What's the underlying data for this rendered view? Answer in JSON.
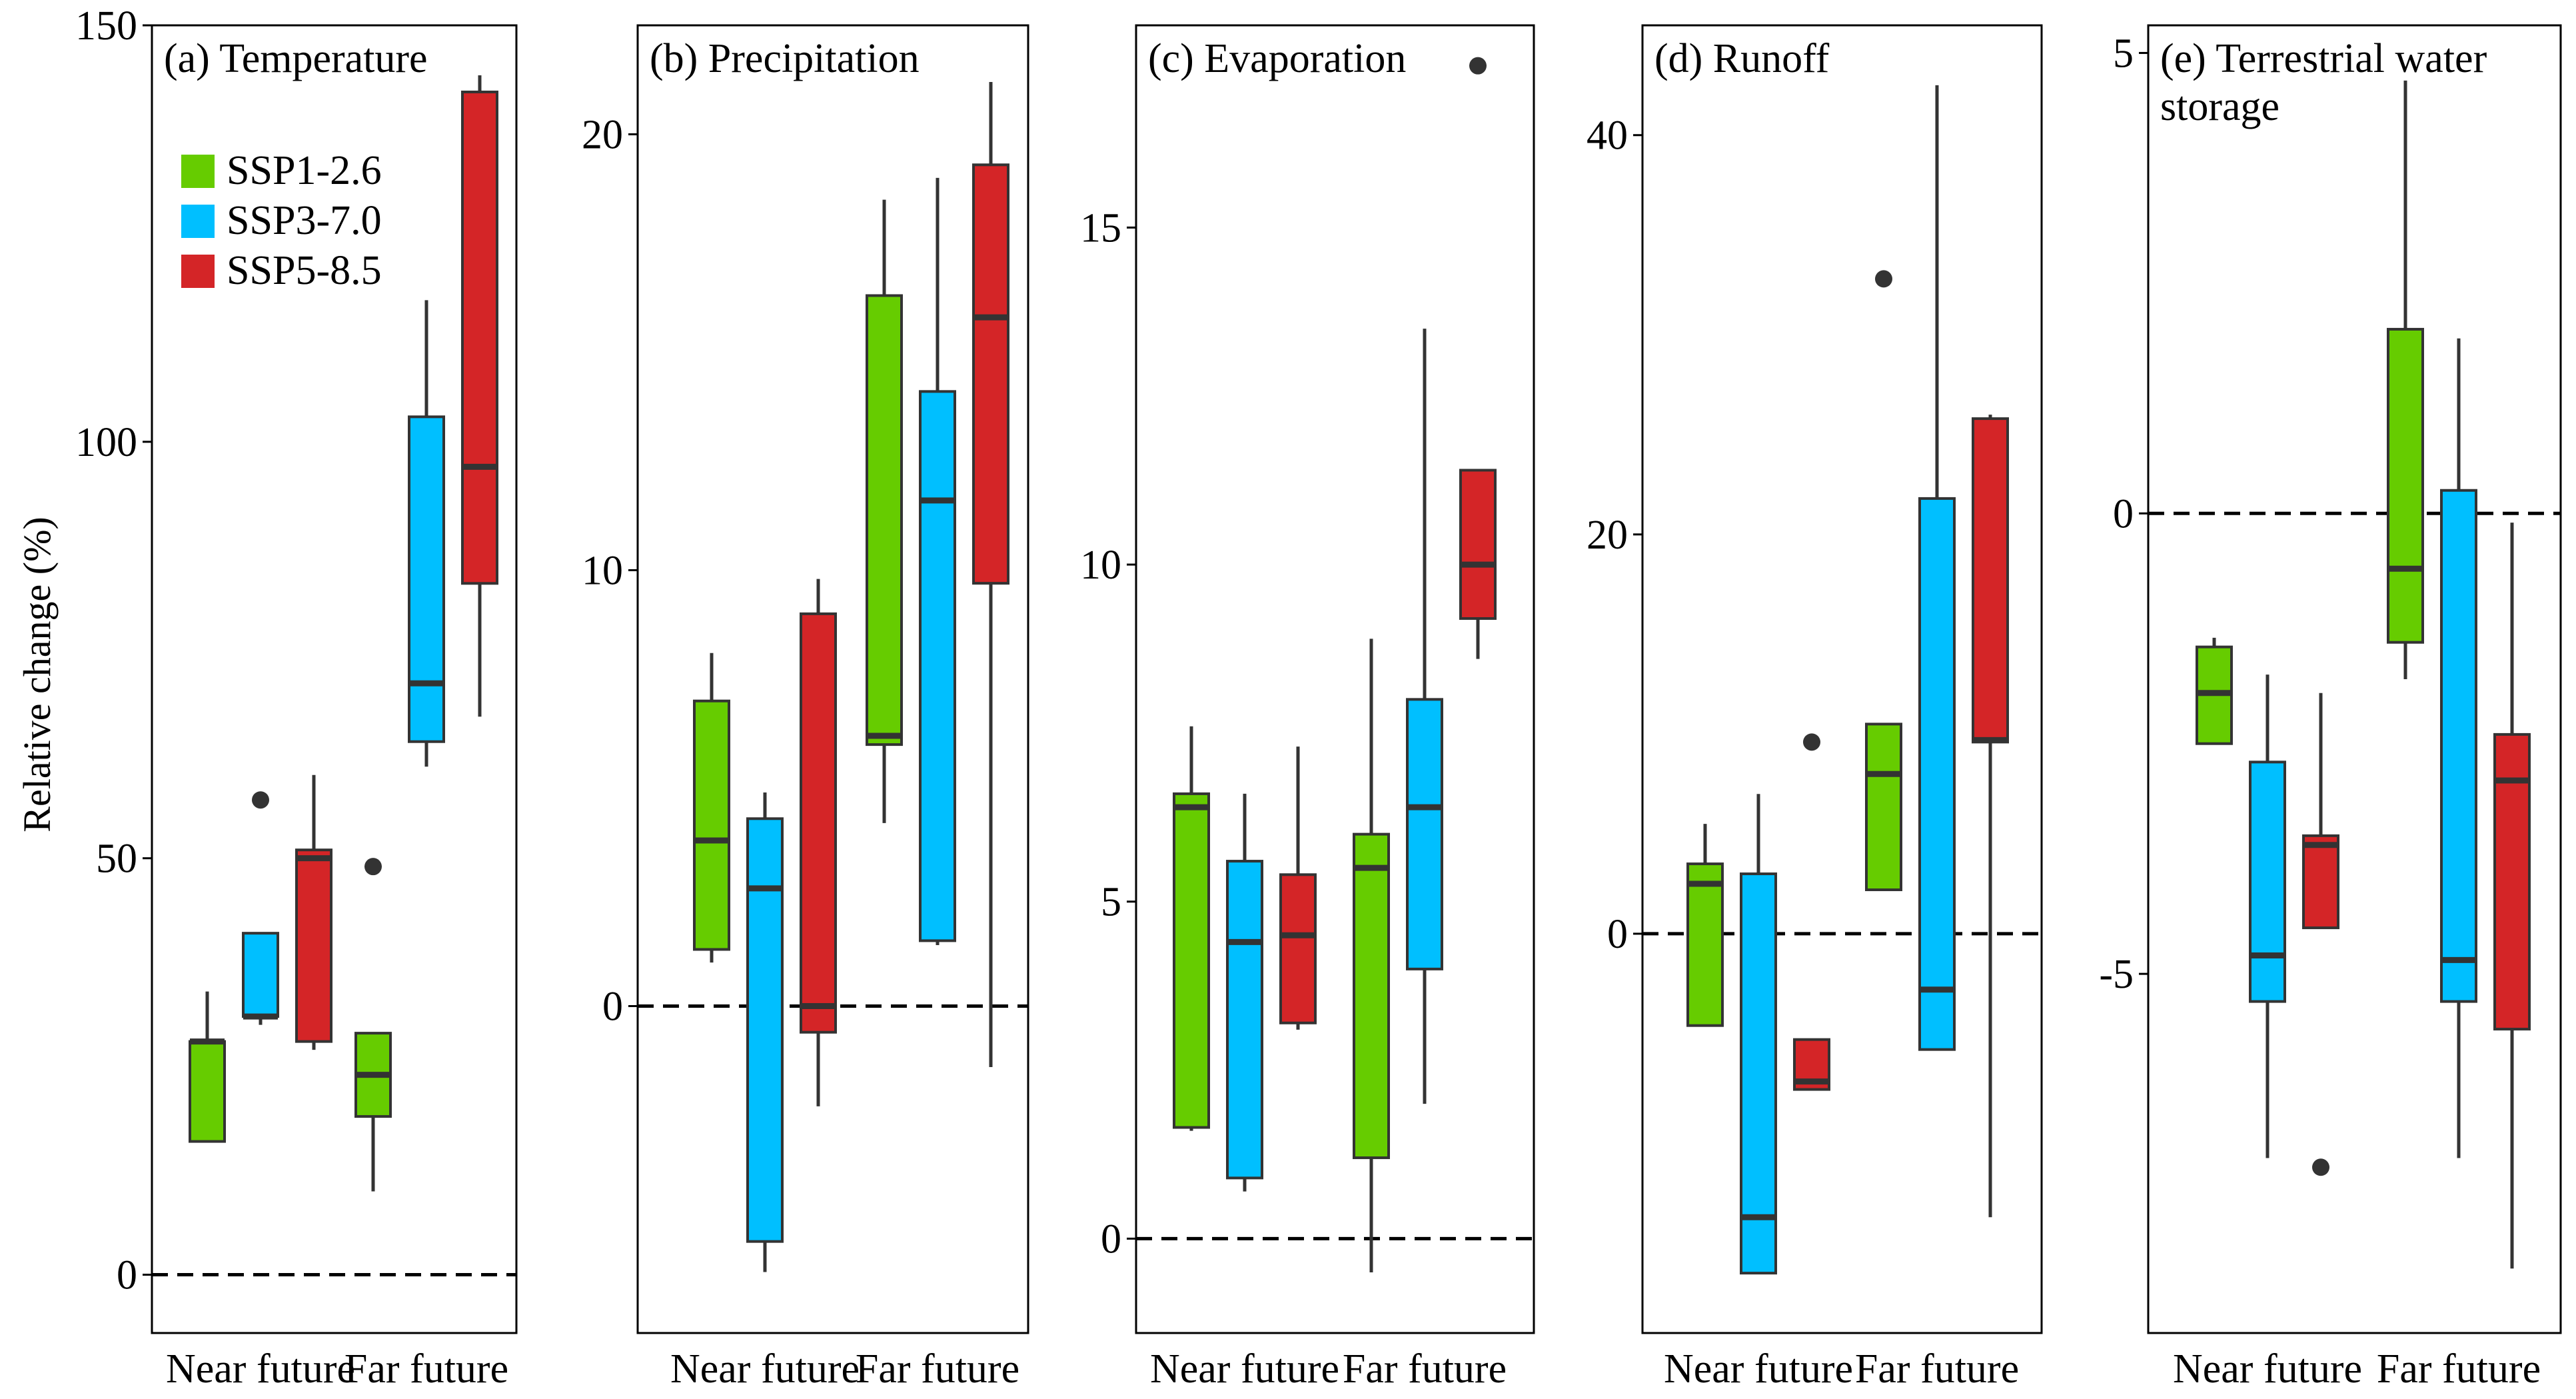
{
  "chart_data": {
    "type": "boxplot",
    "ylabel": "Relative change (%)",
    "categories": [
      "Near future",
      "Far future"
    ],
    "legend": [
      {
        "name": "SSP1-2.6",
        "color": "#66cc00"
      },
      {
        "name": "SSP3-7.0",
        "color": "#00bfff"
      },
      {
        "name": "SSP5-8.5",
        "color": "#d42527"
      }
    ],
    "panels": [
      {
        "title": [
          "(a) Temperature"
        ],
        "ylim": [
          -7,
          150
        ],
        "yticks": [
          0,
          50,
          100,
          150
        ],
        "zero_line": true,
        "show_legend": true,
        "boxes": [
          {
            "period": "Near future",
            "scenario": "SSP1-2.6",
            "lw": 16,
            "q1": 16,
            "median": 28,
            "q3": 28,
            "uw": 34,
            "outliers": []
          },
          {
            "period": "Near future",
            "scenario": "SSP3-7.0",
            "lw": 30,
            "q1": 31,
            "median": 31,
            "q3": 41,
            "uw": 41,
            "outliers": [
              57
            ]
          },
          {
            "period": "Near future",
            "scenario": "SSP5-8.5",
            "lw": 27,
            "q1": 28,
            "median": 50,
            "q3": 51,
            "uw": 60,
            "outliers": []
          },
          {
            "period": "Far future",
            "scenario": "SSP1-2.6",
            "lw": 10,
            "q1": 19,
            "median": 24,
            "q3": 29,
            "uw": 29,
            "outliers": [
              49
            ]
          },
          {
            "period": "Far future",
            "scenario": "SSP3-7.0",
            "lw": 61,
            "q1": 64,
            "median": 71,
            "q3": 103,
            "uw": 117,
            "outliers": []
          },
          {
            "period": "Far future",
            "scenario": "SSP5-8.5",
            "lw": 67,
            "q1": 83,
            "median": 97,
            "q3": 142,
            "uw": 144,
            "outliers": []
          }
        ]
      },
      {
        "title": [
          "(b) Precipitation"
        ],
        "ylim": [
          -7.5,
          22.5
        ],
        "yticks": [
          0,
          10,
          20
        ],
        "zero_line": true,
        "show_legend": false,
        "boxes": [
          {
            "period": "Near future",
            "scenario": "SSP1-2.6",
            "lw": 1.0,
            "q1": 1.3,
            "median": 3.8,
            "q3": 7.0,
            "uw": 8.1,
            "outliers": []
          },
          {
            "period": "Near future",
            "scenario": "SSP3-7.0",
            "lw": -6.1,
            "q1": -5.4,
            "median": 2.7,
            "q3": 4.3,
            "uw": 4.9,
            "outliers": []
          },
          {
            "period": "Near future",
            "scenario": "SSP5-8.5",
            "lw": -2.3,
            "q1": -0.6,
            "median": 0.0,
            "q3": 9.0,
            "uw": 9.8,
            "outliers": []
          },
          {
            "period": "Far future",
            "scenario": "SSP1-2.6",
            "lw": 4.2,
            "q1": 6.0,
            "median": 6.2,
            "q3": 16.3,
            "uw": 18.5,
            "outliers": []
          },
          {
            "period": "Far future",
            "scenario": "SSP3-7.0",
            "lw": 1.4,
            "q1": 1.5,
            "median": 11.6,
            "q3": 14.1,
            "uw": 19.0,
            "outliers": []
          },
          {
            "period": "Far future",
            "scenario": "SSP5-8.5",
            "lw": -1.4,
            "q1": 9.7,
            "median": 15.8,
            "q3": 19.3,
            "uw": 21.2,
            "outliers": []
          }
        ]
      },
      {
        "title": [
          "(c) Evaporation"
        ],
        "ylim": [
          -1.4,
          18.0
        ],
        "yticks": [
          0,
          5,
          10,
          15
        ],
        "zero_line": true,
        "show_legend": false,
        "boxes": [
          {
            "period": "Near future",
            "scenario": "SSP1-2.6",
            "lw": 1.6,
            "q1": 1.65,
            "median": 6.4,
            "q3": 6.6,
            "uw": 7.6,
            "outliers": []
          },
          {
            "period": "Near future",
            "scenario": "SSP3-7.0",
            "lw": 0.7,
            "q1": 0.9,
            "median": 4.4,
            "q3": 5.6,
            "uw": 6.6,
            "outliers": []
          },
          {
            "period": "Near future",
            "scenario": "SSP5-8.5",
            "lw": 3.1,
            "q1": 3.2,
            "median": 4.5,
            "q3": 5.4,
            "uw": 7.3,
            "outliers": []
          },
          {
            "period": "Far future",
            "scenario": "SSP1-2.6",
            "lw": -0.5,
            "q1": 1.2,
            "median": 5.5,
            "q3": 6.0,
            "uw": 8.9,
            "outliers": []
          },
          {
            "period": "Far future",
            "scenario": "SSP3-7.0",
            "lw": 2.0,
            "q1": 4.0,
            "median": 6.4,
            "q3": 8.0,
            "uw": 13.5,
            "outliers": []
          },
          {
            "period": "Far future",
            "scenario": "SSP5-8.5",
            "lw": 8.6,
            "q1": 9.2,
            "median": 10.0,
            "q3": 11.4,
            "uw": 11.4,
            "outliers": [
              17.4
            ]
          }
        ]
      },
      {
        "title": [
          "(d) Runoff"
        ],
        "ylim": [
          -20.0,
          45.5
        ],
        "yticks": [
          0,
          20,
          40
        ],
        "zero_line": true,
        "show_legend": false,
        "boxes": [
          {
            "period": "Near future",
            "scenario": "SSP1-2.6",
            "lw": -4.6,
            "q1": -4.6,
            "median": 2.5,
            "q3": 3.5,
            "uw": 5.5,
            "outliers": []
          },
          {
            "period": "Near future",
            "scenario": "SSP3-7.0",
            "lw": -17.0,
            "q1": -17.0,
            "median": -14.2,
            "q3": 3.0,
            "uw": 7.0,
            "outliers": []
          },
          {
            "period": "Near future",
            "scenario": "SSP5-8.5",
            "lw": -7.8,
            "q1": -7.8,
            "median": -7.4,
            "q3": -5.3,
            "uw": -5.3,
            "outliers": [
              9.6
            ]
          },
          {
            "period": "Far future",
            "scenario": "SSP1-2.6",
            "lw": 2.2,
            "q1": 2.2,
            "median": 8.0,
            "q3": 10.5,
            "uw": 10.5,
            "outliers": [
              32.8
            ]
          },
          {
            "period": "Far future",
            "scenario": "SSP3-7.0",
            "lw": -5.8,
            "q1": -5.8,
            "median": -2.8,
            "q3": 21.8,
            "uw": 42.5,
            "outliers": []
          },
          {
            "period": "Far future",
            "scenario": "SSP5-8.5",
            "lw": -14.2,
            "q1": 9.6,
            "median": 9.7,
            "q3": 25.8,
            "uw": 26.0,
            "outliers": []
          }
        ]
      },
      {
        "title": [
          "(e) Terrestrial water",
          "storage"
        ],
        "ylim": [
          -8.9,
          5.3
        ],
        "yticks": [
          -5,
          0,
          5
        ],
        "zero_line": true,
        "show_legend": false,
        "boxes": [
          {
            "period": "Near future",
            "scenario": "SSP1-2.6",
            "lw": -2.5,
            "q1": -2.5,
            "median": -1.95,
            "q3": -1.45,
            "uw": -1.35,
            "outliers": []
          },
          {
            "period": "Near future",
            "scenario": "SSP3-7.0",
            "lw": -7.0,
            "q1": -5.3,
            "median": -4.8,
            "q3": -2.7,
            "uw": -1.75,
            "outliers": []
          },
          {
            "period": "Near future",
            "scenario": "SSP5-8.5",
            "lw": -4.5,
            "q1": -4.5,
            "median": -3.6,
            "q3": -3.5,
            "uw": -1.95,
            "outliers": [
              -7.1
            ]
          },
          {
            "period": "Far future",
            "scenario": "SSP1-2.6",
            "lw": -1.8,
            "q1": -1.4,
            "median": -0.6,
            "q3": 2.0,
            "uw": 4.7,
            "outliers": []
          },
          {
            "period": "Far future",
            "scenario": "SSP3-7.0",
            "lw": -7.0,
            "q1": -5.3,
            "median": -4.85,
            "q3": 0.25,
            "uw": 1.9,
            "outliers": []
          },
          {
            "period": "Far future",
            "scenario": "SSP5-8.5",
            "lw": -8.2,
            "q1": -5.6,
            "median": -2.9,
            "q3": -2.4,
            "uw": -0.1,
            "outliers": []
          }
        ]
      }
    ]
  }
}
